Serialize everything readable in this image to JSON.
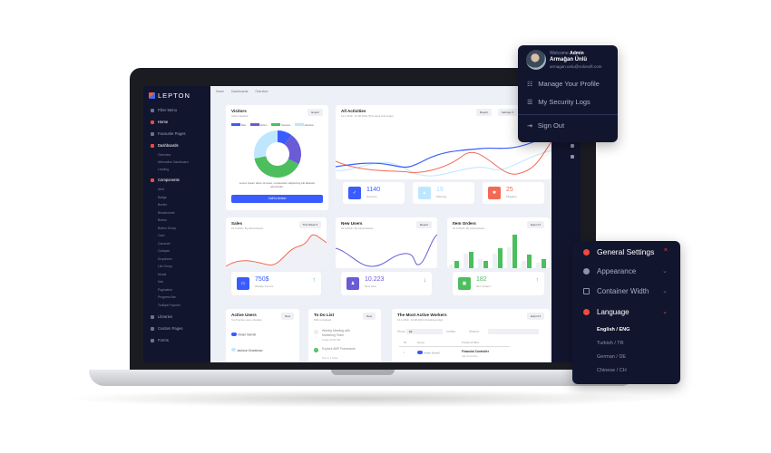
{
  "profile": {
    "welcome": "Welcome",
    "role": "Admin",
    "name": "Armağan Ünlü",
    "email": "armagan.unlu@volosoft.com",
    "items": [
      {
        "label": "Manage Your Profile",
        "icon": "sliders-icon"
      },
      {
        "label": "My Security Logs",
        "icon": "list-icon"
      },
      {
        "label": "Sign Out",
        "icon": "sign-out-icon"
      }
    ]
  },
  "settings": {
    "title": "General Settings",
    "close": "×",
    "items": [
      {
        "label": "Appearance"
      },
      {
        "label": "Container Width"
      },
      {
        "label": "Language"
      }
    ],
    "languages": [
      "English / ENG",
      "Turkish / TR",
      "German / DE",
      "Chinese / CH"
    ],
    "selected_language": "English / ENG"
  },
  "sidebar": {
    "brand": "LEPTON",
    "filter": "Filter Menu",
    "items": [
      "Home",
      "Favourite Pages",
      "Dashboards",
      "Components",
      "Libraries",
      "Custom Pages",
      "Forms"
    ],
    "dashboards": [
      "Overview",
      "Alternative Dashboard",
      "Landing"
    ],
    "components": [
      "Alert",
      "Badge",
      "Border",
      "Breadcrumb",
      "Button",
      "Button Group",
      "Card",
      "Carousel",
      "Collapse",
      "Dropdown",
      "List Group",
      "Modal",
      "Nav",
      "Pagination",
      "Progress Bar",
      "Tooltips Popover"
    ]
  },
  "breadcrumb": [
    "Home",
    "Dashboards",
    "Overview"
  ],
  "visitors": {
    "title": "Visitors",
    "subtitle": "Action Needed",
    "export": "Export",
    "legend": [
      "New",
      "Return",
      "Success",
      "Attention"
    ],
    "text": "Lorem ipsum dolor sit amet, consectetur adipiscing elit aliquam accumsan.",
    "cta": "Call to Action",
    "slices": [
      10,
      22,
      40,
      28
    ],
    "colors": [
      "#3a5cff",
      "#6a5bd6",
      "#4cbe5e",
      "#bfe6ff"
    ]
  },
  "activities": {
    "title": "All Activities",
    "subtitle": "12.1.2019 - 10.08.2019 (This week until today)",
    "report": "Report",
    "settings": "Settings",
    "stats": [
      {
        "value": "1140",
        "label": "Success",
        "color": "#3a5cff"
      },
      {
        "value": "19",
        "label": "Warning",
        "color": "#bfe6ff"
      },
      {
        "value": "25",
        "label": "Mistakes",
        "color": "#f26a55"
      }
    ]
  },
  "sales": {
    "title": "Sales",
    "subtitle": "10.3.2019 • By Administrator",
    "button": "This Week",
    "value": "750$",
    "label": "Weekly Income"
  },
  "new_users": {
    "title": "New Users",
    "subtitle": "10.3.2019 • By Administrator",
    "button": "Report",
    "value": "10.223",
    "label": "New User"
  },
  "item_orders": {
    "title": "Item Orders",
    "subtitle": "10.3.2019 • By Administrator",
    "button": "Export",
    "value": "182",
    "label": "Item Orders"
  },
  "active_users": {
    "title": "Active Users",
    "subtitle": "Top 5 active users showing",
    "button": "New",
    "users": [
      "Vivian Norrell",
      "Jackson Bradshaw"
    ]
  },
  "todo": {
    "title": "To Do List",
    "subtitle": "5/24 completed",
    "button": "New",
    "items": [
      {
        "title": "Weekly Meeting with Marketing Team",
        "time": "Today 03:00 PM",
        "done": false
      },
      {
        "title": "Explore ABP Framework",
        "time": "Due in 1 Days",
        "done": true
      }
    ]
  },
  "workers": {
    "title": "The Most Active Workers",
    "subtitle": "12.1.2019 - 10.08.2019 (Including today)",
    "button": "Export",
    "show": "Show",
    "show_value": "10",
    "entries": "entries",
    "search": "Search:",
    "columns": [
      "ID",
      "Name",
      "Position/Office"
    ],
    "rows": [
      {
        "id": "1",
        "name": "Vivian Norrell",
        "position": "Financial Controller",
        "office": "San Francisco"
      }
    ]
  }
}
